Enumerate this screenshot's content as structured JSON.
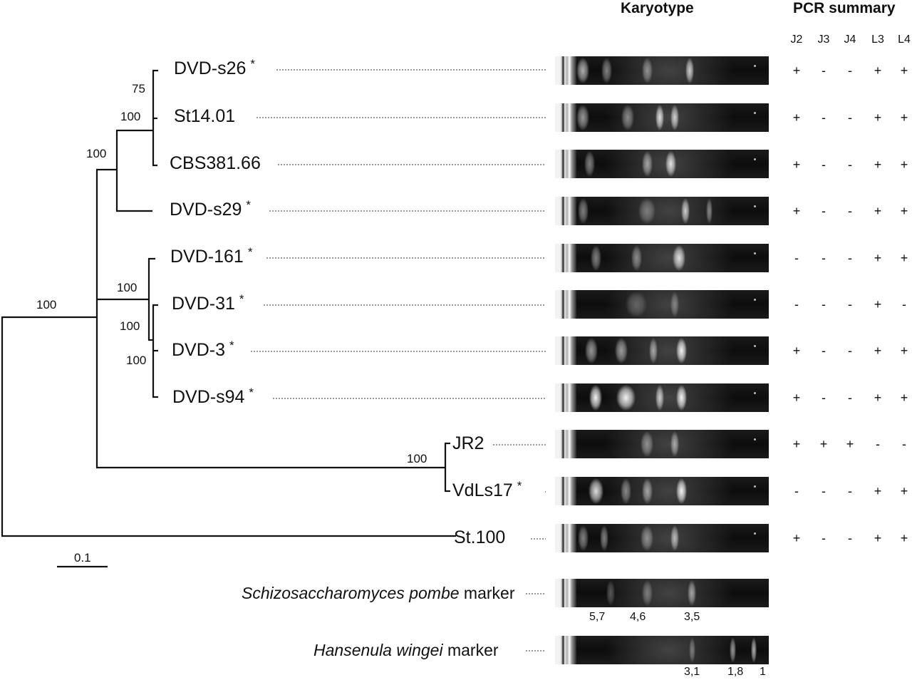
{
  "headers": {
    "karyotype": "Karyotype",
    "pcr_summary": "PCR summary"
  },
  "pcr_columns": [
    "J2",
    "J3",
    "J4",
    "L3",
    "L4"
  ],
  "strains": [
    {
      "name": "DVD-s26",
      "star": "*",
      "pcr": [
        "+",
        "-",
        "-",
        "+",
        "+"
      ],
      "bands": [
        {
          "pos": 0.13,
          "w": 0.06,
          "i": 0.7
        },
        {
          "pos": 0.24,
          "w": 0.05,
          "i": 0.5
        },
        {
          "pos": 0.43,
          "w": 0.05,
          "i": 0.5
        },
        {
          "pos": 0.63,
          "w": 0.04,
          "i": 0.8
        }
      ]
    },
    {
      "name": "St14.01",
      "star": "",
      "pcr": [
        "+",
        "-",
        "-",
        "+",
        "+"
      ],
      "bands": [
        {
          "pos": 0.13,
          "w": 0.06,
          "i": 0.6
        },
        {
          "pos": 0.34,
          "w": 0.06,
          "i": 0.5
        },
        {
          "pos": 0.49,
          "w": 0.04,
          "i": 0.9
        },
        {
          "pos": 0.56,
          "w": 0.04,
          "i": 0.8
        }
      ]
    },
    {
      "name": "CBS381.66",
      "star": "",
      "pcr": [
        "+",
        "-",
        "-",
        "+",
        "+"
      ],
      "bands": [
        {
          "pos": 0.16,
          "w": 0.05,
          "i": 0.5
        },
        {
          "pos": 0.43,
          "w": 0.05,
          "i": 0.6
        },
        {
          "pos": 0.54,
          "w": 0.05,
          "i": 0.9
        }
      ]
    },
    {
      "name": "DVD-s29",
      "star": "*",
      "pcr": [
        "+",
        "-",
        "-",
        "+",
        "+"
      ],
      "bands": [
        {
          "pos": 0.13,
          "w": 0.05,
          "i": 0.5
        },
        {
          "pos": 0.43,
          "w": 0.08,
          "i": 0.4
        },
        {
          "pos": 0.61,
          "w": 0.04,
          "i": 0.8
        },
        {
          "pos": 0.72,
          "w": 0.03,
          "i": 0.5
        }
      ]
    },
    {
      "name": "DVD-161",
      "star": "*",
      "pcr": [
        "-",
        "-",
        "-",
        "+",
        "+"
      ],
      "bands": [
        {
          "pos": 0.19,
          "w": 0.05,
          "i": 0.5
        },
        {
          "pos": 0.38,
          "w": 0.05,
          "i": 0.5
        },
        {
          "pos": 0.58,
          "w": 0.06,
          "i": 0.9
        }
      ]
    },
    {
      "name": "DVD-31",
      "star": "*",
      "pcr": [
        "-",
        "-",
        "-",
        "+",
        "-"
      ],
      "bands": [
        {
          "pos": 0.38,
          "w": 0.1,
          "i": 0.3
        },
        {
          "pos": 0.56,
          "w": 0.04,
          "i": 0.4
        }
      ]
    },
    {
      "name": "DVD-3",
      "star": "*",
      "pcr": [
        "+",
        "-",
        "-",
        "+",
        "+"
      ],
      "bands": [
        {
          "pos": 0.17,
          "w": 0.06,
          "i": 0.6
        },
        {
          "pos": 0.31,
          "w": 0.06,
          "i": 0.6
        },
        {
          "pos": 0.46,
          "w": 0.04,
          "i": 0.6
        },
        {
          "pos": 0.59,
          "w": 0.05,
          "i": 1.0
        }
      ]
    },
    {
      "name": "DVD-s94",
      "star": "*",
      "pcr": [
        "+",
        "-",
        "-",
        "+",
        "+"
      ],
      "bands": [
        {
          "pos": 0.19,
          "w": 0.06,
          "i": 1.0
        },
        {
          "pos": 0.33,
          "w": 0.09,
          "i": 1.0
        },
        {
          "pos": 0.49,
          "w": 0.04,
          "i": 0.8
        },
        {
          "pos": 0.59,
          "w": 0.05,
          "i": 1.0
        }
      ]
    },
    {
      "name": "JR2",
      "star": "",
      "pcr": [
        "+",
        "+",
        "+",
        "-",
        "-"
      ],
      "bands": [
        {
          "pos": 0.43,
          "w": 0.06,
          "i": 0.5
        },
        {
          "pos": 0.56,
          "w": 0.04,
          "i": 0.6
        }
      ]
    },
    {
      "name": "VdLs17",
      "star": "*",
      "pcr": [
        "-",
        "-",
        "-",
        "+",
        "+"
      ],
      "bands": [
        {
          "pos": 0.19,
          "w": 0.07,
          "i": 0.9
        },
        {
          "pos": 0.33,
          "w": 0.05,
          "i": 0.5
        },
        {
          "pos": 0.43,
          "w": 0.05,
          "i": 0.6
        },
        {
          "pos": 0.59,
          "w": 0.05,
          "i": 1.0
        }
      ]
    },
    {
      "name": "St.100",
      "star": "",
      "pcr": [
        "+",
        "-",
        "-",
        "+",
        "+"
      ],
      "bands": [
        {
          "pos": 0.13,
          "w": 0.05,
          "i": 0.5
        },
        {
          "pos": 0.23,
          "w": 0.04,
          "i": 0.5
        },
        {
          "pos": 0.43,
          "w": 0.06,
          "i": 0.5
        },
        {
          "pos": 0.56,
          "w": 0.04,
          "i": 0.7
        }
      ]
    }
  ],
  "bootstrap": [
    "75",
    "100",
    "100",
    "100",
    "100",
    "100",
    "100",
    "100"
  ],
  "scale_bar": {
    "label": "0.1"
  },
  "markers": [
    {
      "species": "Schizosaccharomyces pombe",
      "suffix": "marker",
      "sizes": [
        "5,7",
        "4,6",
        "3,5"
      ],
      "bands": [
        {
          "pos": 0.26,
          "w": 0.04,
          "i": 0.3
        },
        {
          "pos": 0.43,
          "w": 0.05,
          "i": 0.4
        },
        {
          "pos": 0.64,
          "w": 0.04,
          "i": 0.6
        }
      ]
    },
    {
      "species": "Hansenula wingei",
      "suffix": "marker",
      "sizes": [
        "3,1",
        "1,8",
        "1"
      ],
      "bands": [
        {
          "pos": 0.64,
          "w": 0.03,
          "i": 0.4
        },
        {
          "pos": 0.83,
          "w": 0.03,
          "i": 0.6
        },
        {
          "pos": 0.93,
          "w": 0.02,
          "i": 0.7
        }
      ]
    }
  ]
}
